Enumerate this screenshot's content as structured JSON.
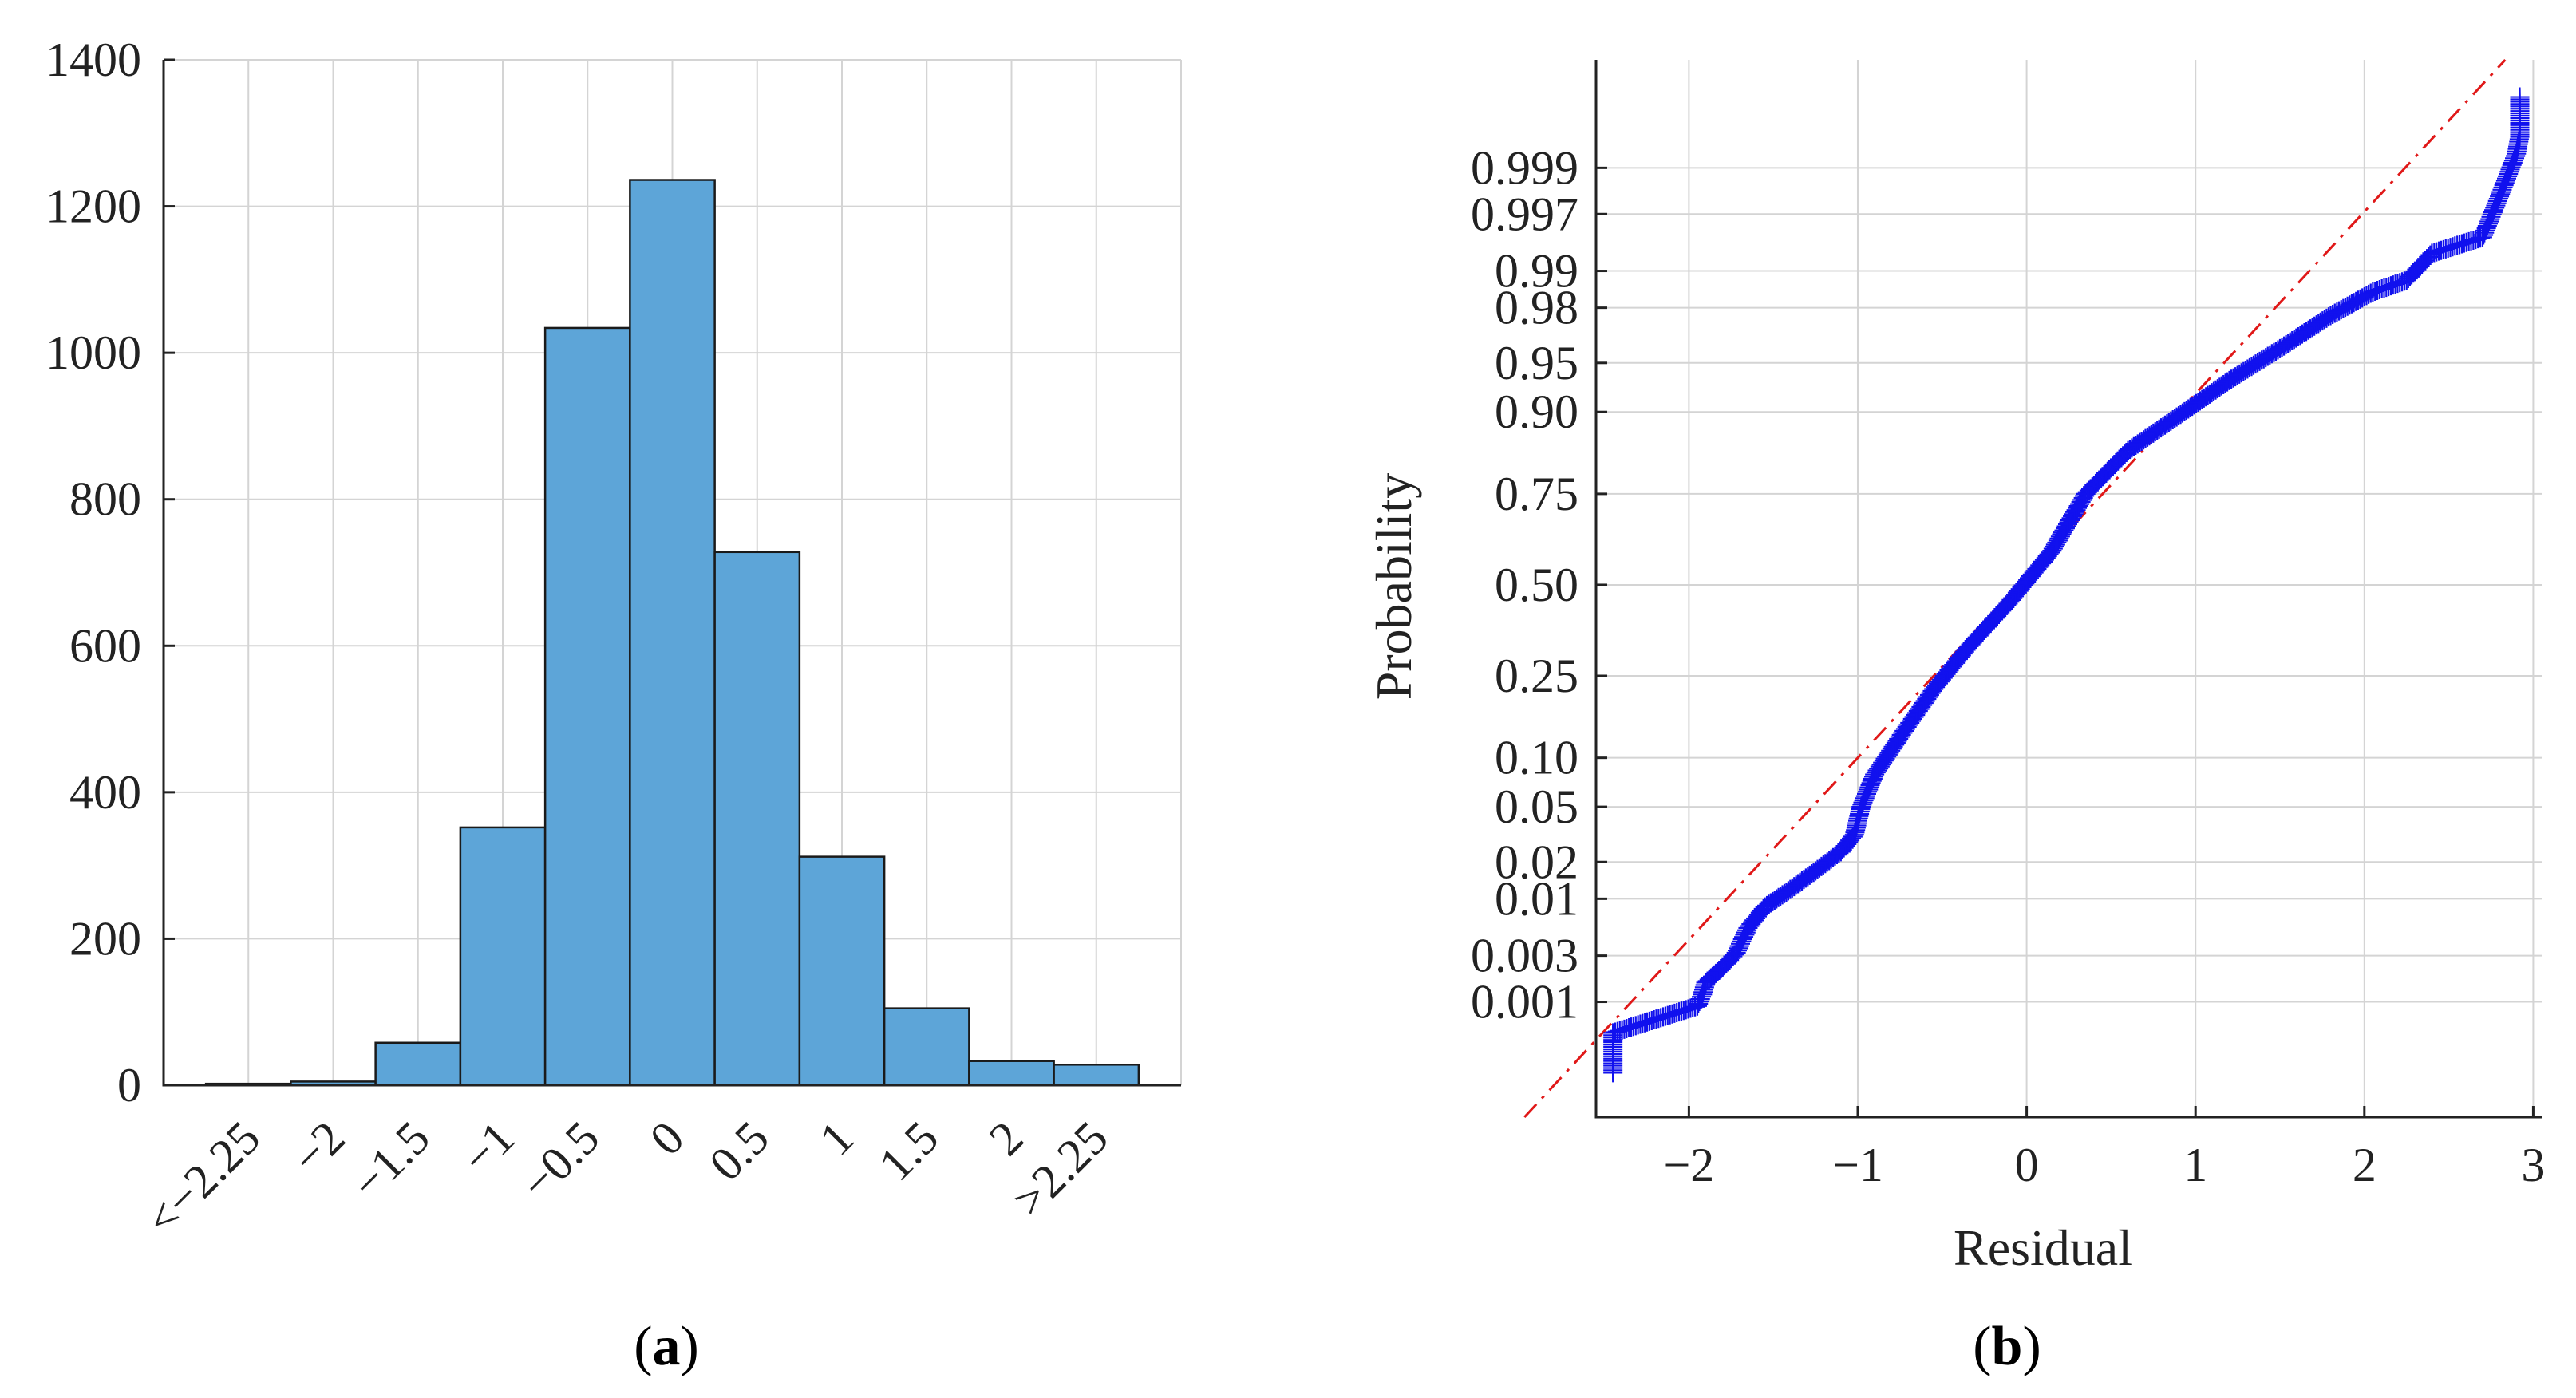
{
  "chart_data": [
    {
      "type": "bar",
      "panel_label": "a",
      "categories": [
        "<−2.25",
        "−2",
        "−1.5",
        "−1",
        "−0.5",
        "0",
        "0.5",
        "1",
        "1.5",
        "2",
        ">2.25"
      ],
      "values": [
        2,
        5,
        58,
        352,
        1034,
        1236,
        728,
        312,
        105,
        33,
        28
      ],
      "yticks": [
        "0",
        "200",
        "400",
        "600",
        "800",
        "1000",
        "1200",
        "1400"
      ],
      "ylim": [
        0,
        1400
      ],
      "grid": true
    },
    {
      "type": "scatter",
      "panel_label": "b",
      "xlabel": "Residual",
      "ylabel": "Probability",
      "xlim": [
        -2.55,
        3.05
      ],
      "xticks": [
        "−2",
        "−1",
        "0",
        "1",
        "2",
        "3"
      ],
      "y_scale": "normal-probability",
      "yticks": [
        "0.001",
        "0.003",
        "0.01",
        "0.02",
        "0.05",
        "0.10",
        "0.25",
        "0.50",
        "0.75",
        "0.90",
        "0.95",
        "0.98",
        "0.99",
        "0.997",
        "0.999"
      ],
      "grid": true,
      "reference_line": {
        "style": "dash-dot",
        "color": "#e01818"
      },
      "marker": "+",
      "marker_color": "#1111ee",
      "approx_sample_count": 3893,
      "quantile_points": [
        [
          -2.45,
          0.00015
        ],
        [
          -2.45,
          0.00045
        ],
        [
          -1.95,
          0.0009
        ],
        [
          -1.92,
          0.0012
        ],
        [
          -1.9,
          0.0016
        ],
        [
          -1.8,
          0.0023
        ],
        [
          -1.72,
          0.0032
        ],
        [
          -1.65,
          0.0055
        ],
        [
          -1.55,
          0.0085
        ],
        [
          -1.4,
          0.012
        ],
        [
          -1.25,
          0.017
        ],
        [
          -1.1,
          0.024
        ],
        [
          -1.02,
          0.032
        ],
        [
          -0.98,
          0.05
        ],
        [
          -0.9,
          0.08
        ],
        [
          -0.75,
          0.13
        ],
        [
          -0.55,
          0.22
        ],
        [
          -0.35,
          0.32
        ],
        [
          -0.1,
          0.45
        ],
        [
          0.15,
          0.6
        ],
        [
          0.35,
          0.75
        ],
        [
          0.6,
          0.84
        ],
        [
          0.9,
          0.895
        ],
        [
          1.2,
          0.935
        ],
        [
          1.5,
          0.96
        ],
        [
          1.8,
          0.977
        ],
        [
          2.05,
          0.985
        ],
        [
          2.25,
          0.988
        ],
        [
          2.4,
          0.993
        ],
        [
          2.7,
          0.995
        ],
        [
          2.8,
          0.998
        ],
        [
          2.9,
          0.9993
        ],
        [
          2.92,
          0.99955
        ],
        [
          2.92,
          0.99985
        ]
      ]
    }
  ]
}
